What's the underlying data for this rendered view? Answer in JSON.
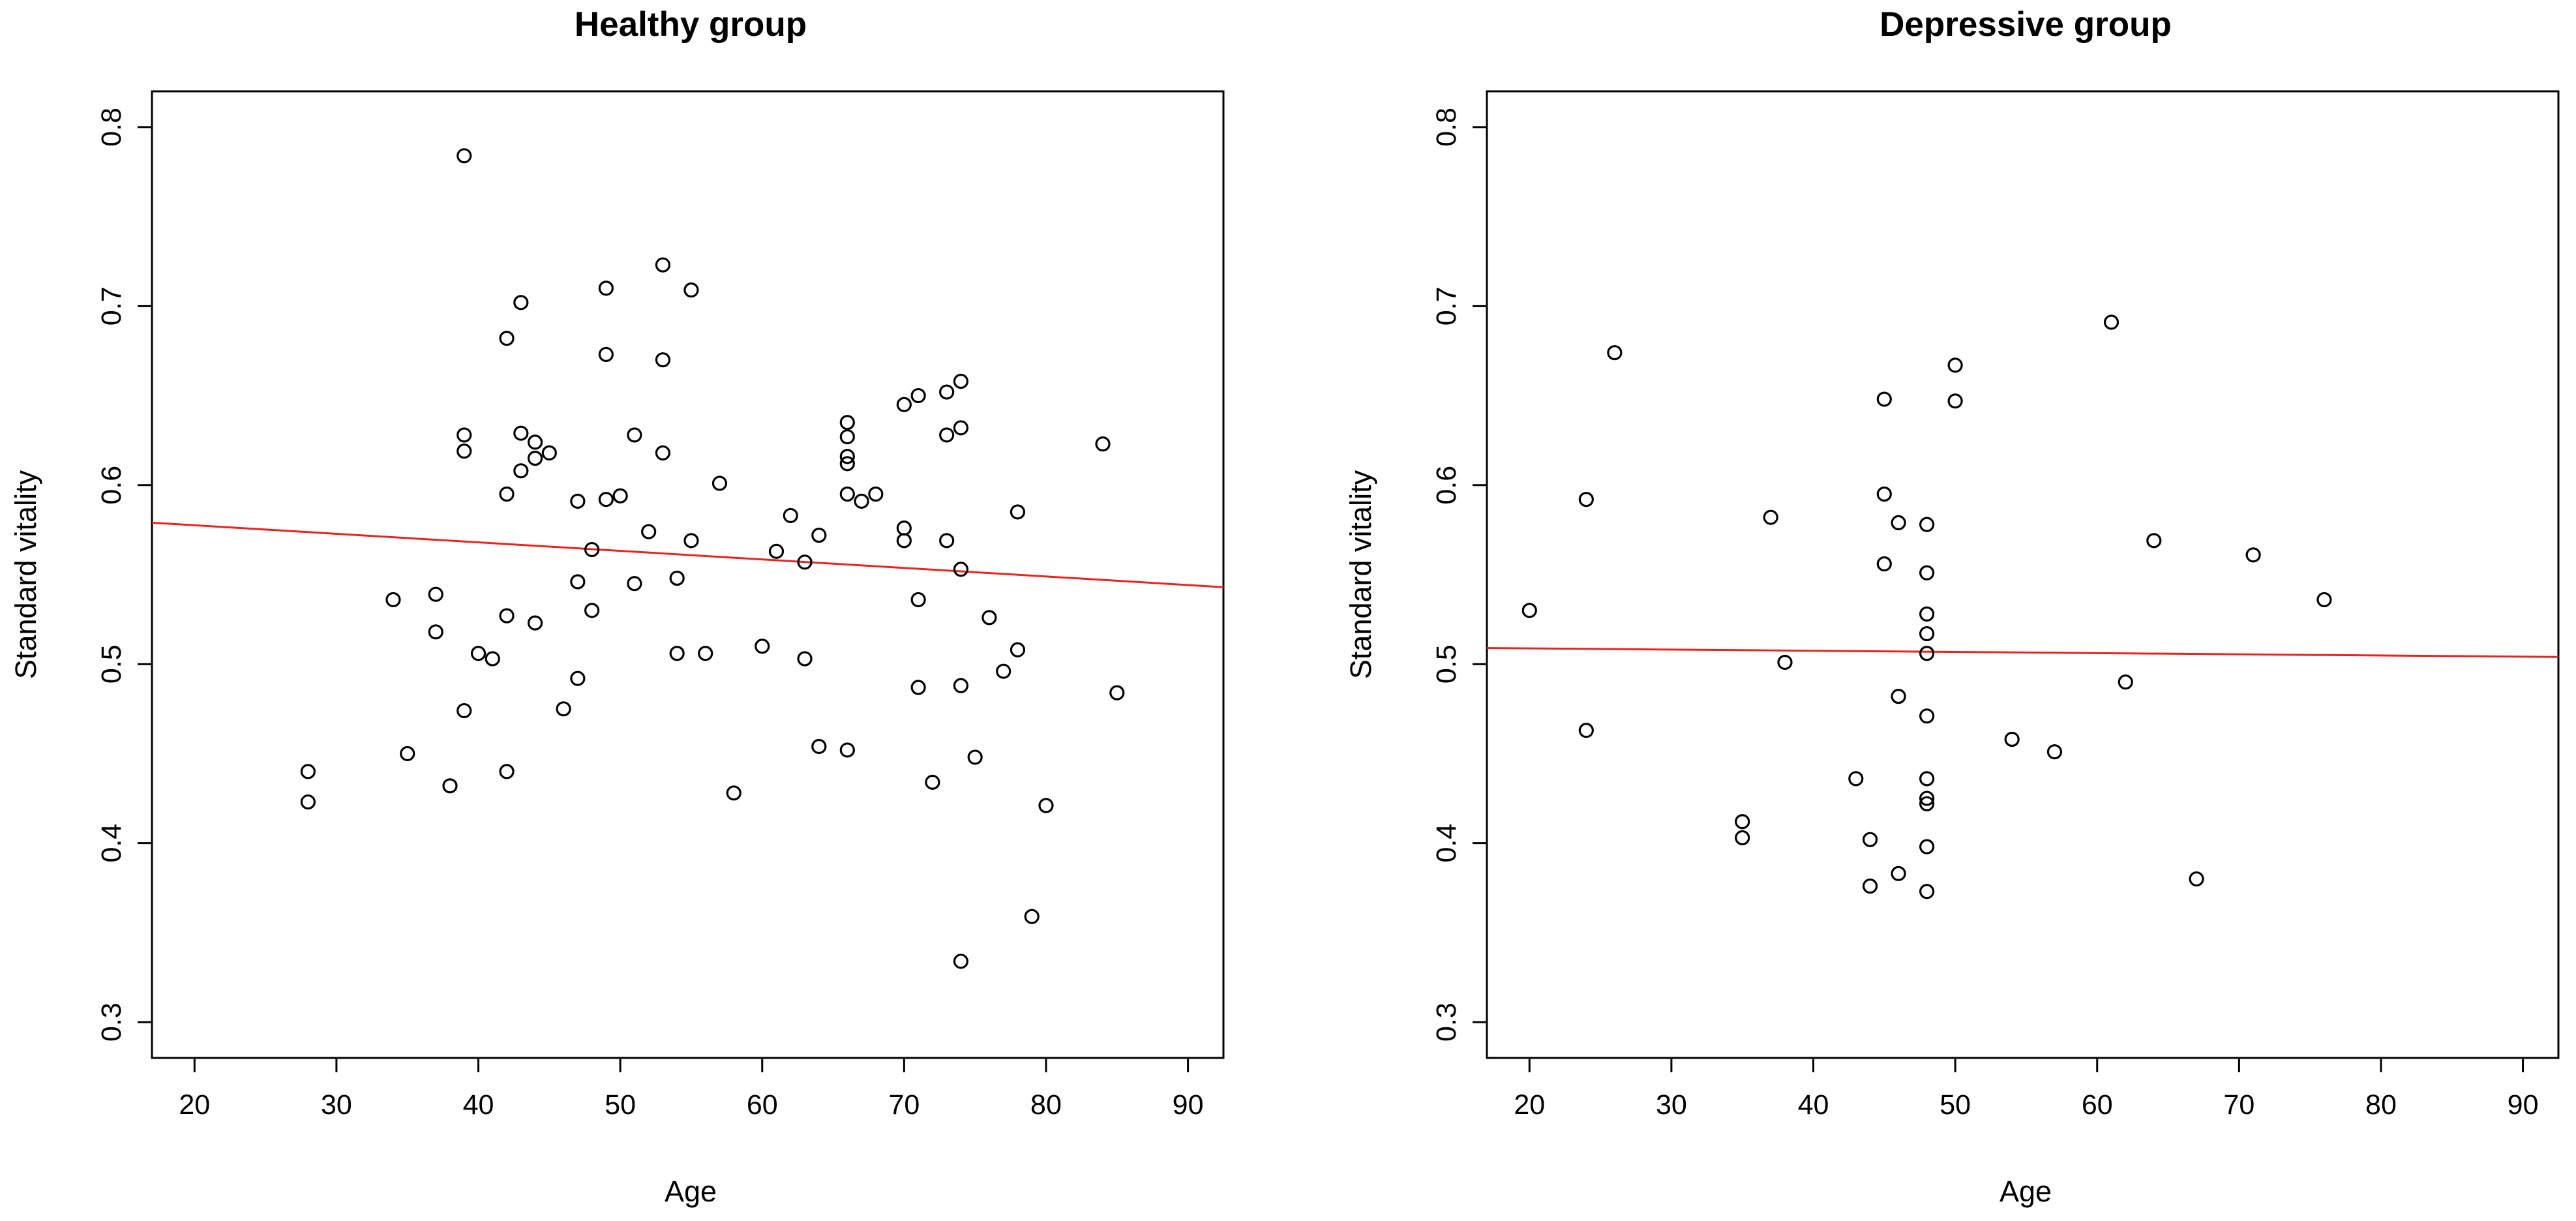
{
  "colors": {
    "points": "#000000",
    "regression_line": "#e8241f",
    "axes": "#000000"
  },
  "chart_data": [
    {
      "type": "scatter",
      "title": "Healthy group",
      "xlabel": "Age",
      "ylabel": "Standard vitality",
      "xlim": [
        17,
        92.5
      ],
      "ylim": [
        0.28,
        0.82
      ],
      "xticks": [
        20,
        30,
        40,
        50,
        60,
        70,
        80,
        90
      ],
      "yticks": [
        0.3,
        0.4,
        0.5,
        0.6,
        0.7,
        0.8
      ],
      "regression_line": {
        "x": [
          17,
          92.5
        ],
        "y": [
          0.579,
          0.543
        ]
      },
      "points": [
        {
          "x": 39,
          "y": 0.784
        },
        {
          "x": 53,
          "y": 0.723
        },
        {
          "x": 49,
          "y": 0.71
        },
        {
          "x": 55,
          "y": 0.709
        },
        {
          "x": 43,
          "y": 0.702
        },
        {
          "x": 42,
          "y": 0.682
        },
        {
          "x": 49,
          "y": 0.673
        },
        {
          "x": 53,
          "y": 0.67
        },
        {
          "x": 74,
          "y": 0.658
        },
        {
          "x": 73,
          "y": 0.652
        },
        {
          "x": 71,
          "y": 0.65
        },
        {
          "x": 70,
          "y": 0.645
        },
        {
          "x": 66,
          "y": 0.635
        },
        {
          "x": 74,
          "y": 0.632
        },
        {
          "x": 43,
          "y": 0.629
        },
        {
          "x": 39,
          "y": 0.628
        },
        {
          "x": 51,
          "y": 0.628
        },
        {
          "x": 73,
          "y": 0.628
        },
        {
          "x": 66,
          "y": 0.627
        },
        {
          "x": 44,
          "y": 0.624
        },
        {
          "x": 84,
          "y": 0.623
        },
        {
          "x": 39,
          "y": 0.619
        },
        {
          "x": 45,
          "y": 0.618
        },
        {
          "x": 53,
          "y": 0.618
        },
        {
          "x": 44,
          "y": 0.615
        },
        {
          "x": 66,
          "y": 0.616
        },
        {
          "x": 66,
          "y": 0.612
        },
        {
          "x": 43,
          "y": 0.608
        },
        {
          "x": 57,
          "y": 0.601
        },
        {
          "x": 42,
          "y": 0.595
        },
        {
          "x": 66,
          "y": 0.595
        },
        {
          "x": 68,
          "y": 0.595
        },
        {
          "x": 50,
          "y": 0.594
        },
        {
          "x": 49,
          "y": 0.592
        },
        {
          "x": 47,
          "y": 0.591
        },
        {
          "x": 67,
          "y": 0.591
        },
        {
          "x": 78,
          "y": 0.585
        },
        {
          "x": 62,
          "y": 0.583
        },
        {
          "x": 70,
          "y": 0.576
        },
        {
          "x": 52,
          "y": 0.574
        },
        {
          "x": 64,
          "y": 0.572
        },
        {
          "x": 55,
          "y": 0.569
        },
        {
          "x": 70,
          "y": 0.569
        },
        {
          "x": 73,
          "y": 0.569
        },
        {
          "x": 48,
          "y": 0.564
        },
        {
          "x": 61,
          "y": 0.563
        },
        {
          "x": 63,
          "y": 0.557
        },
        {
          "x": 74,
          "y": 0.553
        },
        {
          "x": 54,
          "y": 0.548
        },
        {
          "x": 47,
          "y": 0.546
        },
        {
          "x": 51,
          "y": 0.545
        },
        {
          "x": 37,
          "y": 0.539
        },
        {
          "x": 34,
          "y": 0.536
        },
        {
          "x": 71,
          "y": 0.536
        },
        {
          "x": 48,
          "y": 0.53
        },
        {
          "x": 42,
          "y": 0.527
        },
        {
          "x": 76,
          "y": 0.526
        },
        {
          "x": 44,
          "y": 0.523
        },
        {
          "x": 37,
          "y": 0.518
        },
        {
          "x": 60,
          "y": 0.51
        },
        {
          "x": 78,
          "y": 0.508
        },
        {
          "x": 40,
          "y": 0.506
        },
        {
          "x": 54,
          "y": 0.506
        },
        {
          "x": 56,
          "y": 0.506
        },
        {
          "x": 41,
          "y": 0.503
        },
        {
          "x": 63,
          "y": 0.503
        },
        {
          "x": 77,
          "y": 0.496
        },
        {
          "x": 47,
          "y": 0.492
        },
        {
          "x": 71,
          "y": 0.487
        },
        {
          "x": 74,
          "y": 0.488
        },
        {
          "x": 85,
          "y": 0.484
        },
        {
          "x": 46,
          "y": 0.475
        },
        {
          "x": 39,
          "y": 0.474
        },
        {
          "x": 64,
          "y": 0.454
        },
        {
          "x": 66,
          "y": 0.452
        },
        {
          "x": 35,
          "y": 0.45
        },
        {
          "x": 75,
          "y": 0.448
        },
        {
          "x": 28,
          "y": 0.44
        },
        {
          "x": 42,
          "y": 0.44
        },
        {
          "x": 72,
          "y": 0.434
        },
        {
          "x": 38,
          "y": 0.432
        },
        {
          "x": 58,
          "y": 0.428
        },
        {
          "x": 28,
          "y": 0.423
        },
        {
          "x": 80,
          "y": 0.421
        },
        {
          "x": 79,
          "y": 0.359
        },
        {
          "x": 74,
          "y": 0.334
        }
      ]
    },
    {
      "type": "scatter",
      "title": "Depressive group",
      "xlabel": "Age",
      "ylabel": "Standard vitality",
      "xlim": [
        17,
        92.5
      ],
      "ylim": [
        0.28,
        0.82
      ],
      "xticks": [
        20,
        30,
        40,
        50,
        60,
        70,
        80,
        90
      ],
      "yticks": [
        0.3,
        0.4,
        0.5,
        0.6,
        0.7,
        0.8
      ],
      "regression_line": {
        "x": [
          17,
          92.5
        ],
        "y": [
          0.509,
          0.504
        ]
      },
      "points": [
        {
          "x": 61,
          "y": 0.691
        },
        {
          "x": 26,
          "y": 0.674
        },
        {
          "x": 50,
          "y": 0.667
        },
        {
          "x": 45,
          "y": 0.648
        },
        {
          "x": 50,
          "y": 0.647
        },
        {
          "x": 45,
          "y": 0.595
        },
        {
          "x": 24,
          "y": 0.592
        },
        {
          "x": 37,
          "y": 0.582
        },
        {
          "x": 46,
          "y": 0.579
        },
        {
          "x": 48,
          "y": 0.578
        },
        {
          "x": 64,
          "y": 0.569
        },
        {
          "x": 71,
          "y": 0.561
        },
        {
          "x": 45,
          "y": 0.556
        },
        {
          "x": 48,
          "y": 0.551
        },
        {
          "x": 76,
          "y": 0.536
        },
        {
          "x": 20,
          "y": 0.53
        },
        {
          "x": 48,
          "y": 0.528
        },
        {
          "x": 48,
          "y": 0.517
        },
        {
          "x": 48,
          "y": 0.506
        },
        {
          "x": 38,
          "y": 0.501
        },
        {
          "x": 62,
          "y": 0.49
        },
        {
          "x": 46,
          "y": 0.482
        },
        {
          "x": 48,
          "y": 0.471
        },
        {
          "x": 24,
          "y": 0.463
        },
        {
          "x": 54,
          "y": 0.458
        },
        {
          "x": 57,
          "y": 0.451
        },
        {
          "x": 43,
          "y": 0.436
        },
        {
          "x": 48,
          "y": 0.436
        },
        {
          "x": 48,
          "y": 0.425
        },
        {
          "x": 48,
          "y": 0.422
        },
        {
          "x": 35,
          "y": 0.412
        },
        {
          "x": 35,
          "y": 0.403
        },
        {
          "x": 44,
          "y": 0.402
        },
        {
          "x": 48,
          "y": 0.398
        },
        {
          "x": 46,
          "y": 0.383
        },
        {
          "x": 67,
          "y": 0.38
        },
        {
          "x": 44,
          "y": 0.376
        },
        {
          "x": 48,
          "y": 0.373
        }
      ]
    }
  ]
}
